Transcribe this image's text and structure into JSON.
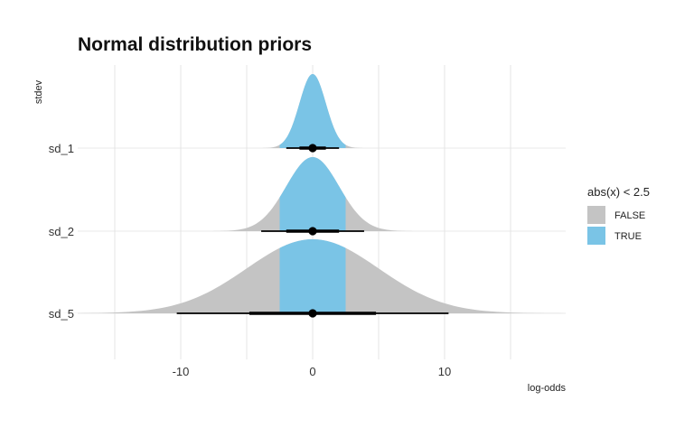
{
  "chart_data": {
    "type": "halfeye",
    "title": "Normal distribution priors",
    "xlabel": "log-odds",
    "ylabel": "stdev",
    "xlim": [
      -16.5,
      19
    ],
    "x_ticks": [
      -10,
      0,
      10
    ],
    "grid": true,
    "highlight_threshold": 2.5,
    "legend": {
      "title": "abs(x) < 2.5",
      "position": "right",
      "entries": [
        {
          "label": "FALSE",
          "color": "#c4c4c4"
        },
        {
          "label": "TRUE",
          "color": "#7ac4e6"
        }
      ]
    },
    "series": [
      {
        "name": "sd_1",
        "sd": 1,
        "median": 0,
        "interval_66": [
          -1,
          1
        ],
        "interval_95": [
          -2,
          2
        ]
      },
      {
        "name": "sd_2",
        "sd": 2,
        "median": 0,
        "interval_66": [
          -2,
          2
        ],
        "interval_95": [
          -3.9,
          3.9
        ]
      },
      {
        "name": "sd_5",
        "sd": 5,
        "median": 0,
        "interval_66": [
          -4.8,
          4.8
        ],
        "interval_95": [
          -10.3,
          10.3
        ]
      }
    ]
  }
}
